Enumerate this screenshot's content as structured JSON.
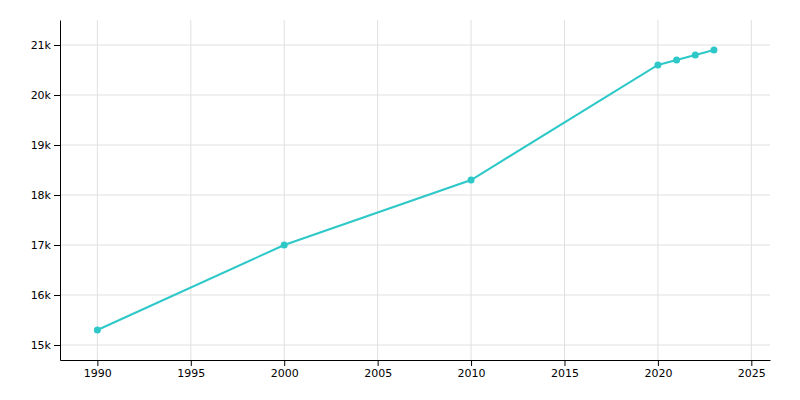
{
  "chart_data": {
    "type": "line",
    "x": [
      1990,
      2000,
      2010,
      2020,
      2021,
      2022,
      2023
    ],
    "values": [
      15300,
      17000,
      18300,
      20600,
      20700,
      20800,
      20900
    ],
    "color": "#2ec8c8",
    "marker": "circle",
    "xlim": [
      1988,
      2026
    ],
    "ylim": [
      14700,
      21500
    ],
    "xticks": [
      1990,
      1995,
      2000,
      2005,
      2010,
      2015,
      2020,
      2025
    ],
    "yticks": [
      {
        "value": 15000,
        "label": "15k"
      },
      {
        "value": 16000,
        "label": "16k"
      },
      {
        "value": 17000,
        "label": "17k"
      },
      {
        "value": 18000,
        "label": "18k"
      },
      {
        "value": 19000,
        "label": "19k"
      },
      {
        "value": 20000,
        "label": "20k"
      },
      {
        "value": 21000,
        "label": "21k"
      }
    ],
    "grid": true
  }
}
